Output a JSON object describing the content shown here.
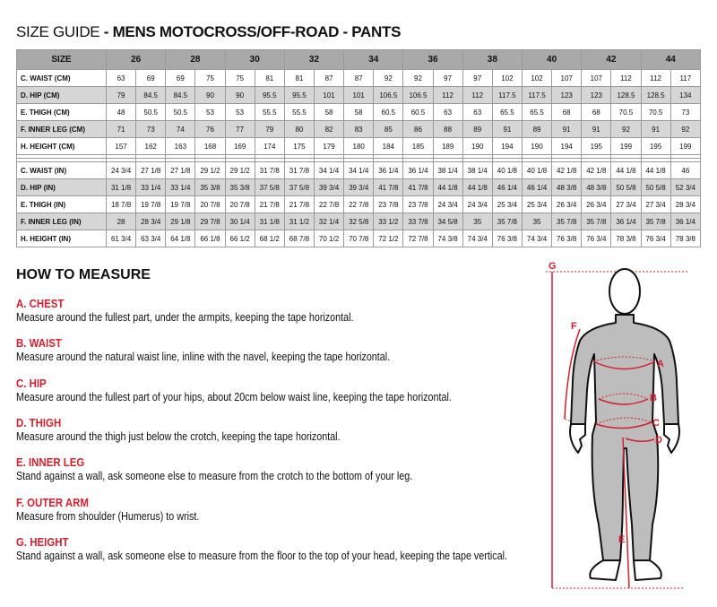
{
  "title": {
    "prefix": "SIZE GUIDE",
    "main": " - MENS MOTOCROSS/OFF-ROAD - PANTS"
  },
  "table": {
    "size_label": "SIZE",
    "sizes": [
      "26",
      "28",
      "30",
      "32",
      "34",
      "36",
      "38",
      "40",
      "42",
      "44"
    ],
    "cm_rows": [
      {
        "label": "C. WAIST (CM)",
        "values": [
          "63",
          "69",
          "69",
          "75",
          "75",
          "81",
          "81",
          "87",
          "87",
          "92",
          "92",
          "97",
          "97",
          "102",
          "102",
          "107",
          "107",
          "112",
          "112",
          "117"
        ]
      },
      {
        "label": "D. HIP (CM)",
        "values": [
          "79",
          "84.5",
          "84.5",
          "90",
          "90",
          "95.5",
          "95.5",
          "101",
          "101",
          "106.5",
          "106.5",
          "112",
          "112",
          "117.5",
          "117.5",
          "123",
          "123",
          "128.5",
          "128.5",
          "134"
        ]
      },
      {
        "label": "E. THIGH (CM)",
        "values": [
          "48",
          "50.5",
          "50.5",
          "53",
          "53",
          "55.5",
          "55.5",
          "58",
          "58",
          "60.5",
          "60.5",
          "63",
          "63",
          "65.5",
          "65.5",
          "68",
          "68",
          "70.5",
          "70.5",
          "73"
        ]
      },
      {
        "label": "F. INNER LEG (CM)",
        "values": [
          "71",
          "73",
          "74",
          "76",
          "77",
          "79",
          "80",
          "82",
          "83",
          "85",
          "86",
          "88",
          "89",
          "91",
          "89",
          "91",
          "91",
          "92",
          "91",
          "92"
        ]
      },
      {
        "label": "H. HEIGHT (CM)",
        "values": [
          "157",
          "162",
          "163",
          "168",
          "169",
          "174",
          "175",
          "179",
          "180",
          "184",
          "185",
          "189",
          "190",
          "194",
          "190",
          "194",
          "195",
          "199",
          "195",
          "199"
        ]
      }
    ],
    "in_rows": [
      {
        "label": "C. WAIST (IN)",
        "values": [
          "24 3/4",
          "27 1/8",
          "27 1/8",
          "29 1/2",
          "29 1/2",
          "31 7/8",
          "31 7/8",
          "34 1/4",
          "34 1/4",
          "36 1/4",
          "36 1/4",
          "38 1/4",
          "38 1/4",
          "40 1/8",
          "40 1/8",
          "42 1/8",
          "42 1/8",
          "44 1/8",
          "44 1/8",
          "46"
        ]
      },
      {
        "label": "D. HIP (IN)",
        "values": [
          "31 1/8",
          "33 1/4",
          "33 1/4",
          "35 3/8",
          "35 3/8",
          "37 5/8",
          "37 5/8",
          "39 3/4",
          "39 3/4",
          "41 7/8",
          "41 7/8",
          "44 1/8",
          "44 1/8",
          "46 1/4",
          "46 1/4",
          "48 3/8",
          "48 3/8",
          "50 5/8",
          "50 5/8",
          "52 3/4"
        ]
      },
      {
        "label": "E. THIGH (IN)",
        "values": [
          "18 7/8",
          "19 7/8",
          "19 7/8",
          "20 7/8",
          "20 7/8",
          "21 7/8",
          "21 7/8",
          "22 7/8",
          "22 7/8",
          "23 7/8",
          "23 7/8",
          "24 3/4",
          "24 3/4",
          "25 3/4",
          "25 3/4",
          "26 3/4",
          "26 3/4",
          "27 3/4",
          "27 3/4",
          "28 3/4"
        ]
      },
      {
        "label": "F. INNER LEG (IN)",
        "values": [
          "28",
          "28 3/4",
          "29 1/8",
          "29 7/8",
          "30 1/4",
          "31 1/8",
          "31 1/2",
          "32 1/4",
          "32 5/8",
          "33 1/2",
          "33 7/8",
          "34 5/8",
          "35",
          "35 7/8",
          "35",
          "35 7/8",
          "35 7/8",
          "36 1/4",
          "35 7/8",
          "36 1/4"
        ]
      },
      {
        "label": "H. HEIGHT (IN)",
        "values": [
          "61 3/4",
          "63 3/4",
          "64 1/8",
          "66 1/8",
          "66 1/2",
          "68 1/2",
          "68 7/8",
          "70 1/2",
          "70 7/8",
          "72 1/2",
          "72 7/8",
          "74 3/8",
          "74 3/4",
          "76 3/8",
          "74 3/4",
          "76 3/8",
          "76 3/4",
          "78 3/8",
          "76 3/4",
          "78 3/8"
        ]
      }
    ]
  },
  "how_to": {
    "title": "HOW TO MEASURE",
    "sections": [
      {
        "heading": "A. CHEST",
        "text": "Measure around the fullest part, under the armpits, keeping the tape horizontal."
      },
      {
        "heading": "B. WAIST",
        "text": "Measure around the natural waist line, inline with the navel, keeping the tape horizontal."
      },
      {
        "heading": "C. HIP",
        "text": "Measure around the fullest part of your hips, about 20cm below waist line, keeping the tape horizontal."
      },
      {
        "heading": "D. THIGH",
        "text": "Measure around the thigh just below the crotch, keeping the tape horizontal."
      },
      {
        "heading": "E. INNER LEG",
        "text": "Stand against a wall, ask someone else to measure from the crotch to the bottom of your leg."
      },
      {
        "heading": "F. OUTER ARM",
        "text": "Measure from shoulder (Humerus) to wrist."
      },
      {
        "heading": "G. HEIGHT",
        "text": "Stand against a wall, ask someone else to measure from the floor to the top of your head, keeping the tape vertical."
      }
    ]
  },
  "figure": {
    "labels": [
      "G",
      "F",
      "A",
      "B",
      "C",
      "D",
      "E"
    ],
    "accent": "#d3202f",
    "suit": "#b8b8b8"
  }
}
